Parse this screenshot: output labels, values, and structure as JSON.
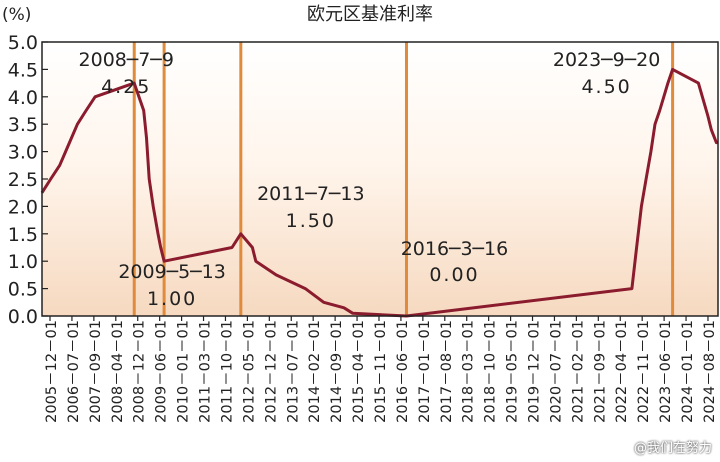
{
  "chart_data": {
    "type": "line",
    "title": "欧元区基准利率",
    "ylabel": "(%)",
    "ylim": [
      0,
      5.0
    ],
    "yticks": [
      "5.0",
      "4.5",
      "4.0",
      "3.5",
      "3.0",
      "2.5",
      "2.0",
      "1.5",
      "1.0",
      "0.5",
      "0.0"
    ],
    "x_ticks": [
      "2005-12-01",
      "2006-07-01",
      "2007-09-01",
      "2008-04-01",
      "2008-12-01",
      "2009-06-01",
      "2010-01-01",
      "2011-03-01",
      "2011-10-01",
      "2012-05-01",
      "2012-12-01",
      "2013-07-01",
      "2014-02-01",
      "2014-09-01",
      "2015-04-01",
      "2015-11-01",
      "2016-06-01",
      "2017-01-01",
      "2017-08-01",
      "2018-03-01",
      "2018-10-01",
      "2019-05-01",
      "2019-12-01",
      "2020-07-01",
      "2021-02-01",
      "2021-09-01",
      "2022-04-01",
      "2022-11-01",
      "2023-06-01",
      "2024-01-01",
      "2024-08-01"
    ],
    "tick_labels": [
      "2005－12－01",
      "2006－07－01",
      "2007－09－01",
      "2008－04－01",
      "2008－12－01",
      "2009－06－01",
      "2010－01－01",
      "2011－03－01",
      "2011－10－01",
      "2012－05－01",
      "2012－12－01",
      "2013－07－01",
      "2014－02－01",
      "2014－09－01",
      "2015－04－01",
      "2015－11－01",
      "2016－06－01",
      "2017－01－01",
      "2017－08－01",
      "2018－03－01",
      "2018－10－01",
      "2019－05－01",
      "2019－12－01",
      "2020－07－01",
      "2021－02－01",
      "2021－09－01",
      "2022－04－01",
      "2022－11－01",
      "2023－06－01",
      "2024－01－01",
      "2024－08－01"
    ],
    "series": [
      {
        "values": [
          [
            "2005-12-01",
            2.25
          ],
          [
            "2006-03-01",
            2.5
          ],
          [
            "2006-06-01",
            2.75
          ],
          [
            "2006-08-01",
            3.0
          ],
          [
            "2006-10-01",
            3.25
          ],
          [
            "2006-12-01",
            3.5
          ],
          [
            "2007-03-01",
            3.75
          ],
          [
            "2007-06-01",
            4.0
          ],
          [
            "2008-07-09",
            4.25
          ],
          [
            "2008-10-15",
            3.75
          ],
          [
            "2008-11-12",
            3.25
          ],
          [
            "2008-12-10",
            2.5
          ],
          [
            "2009-01-21",
            2.0
          ],
          [
            "2009-03-11",
            1.5
          ],
          [
            "2009-04-08",
            1.25
          ],
          [
            "2009-05-13",
            1.0
          ],
          [
            "2011-04-13",
            1.25
          ],
          [
            "2011-07-13",
            1.5
          ],
          [
            "2011-11-09",
            1.25
          ],
          [
            "2011-12-14",
            1.0
          ],
          [
            "2012-07-11",
            0.75
          ],
          [
            "2013-05-08",
            0.5
          ],
          [
            "2013-11-13",
            0.25
          ],
          [
            "2014-06-11",
            0.15
          ],
          [
            "2014-09-10",
            0.05
          ],
          [
            "2016-03-16",
            0.0
          ],
          [
            "2022-07-27",
            0.5
          ],
          [
            "2022-09-14",
            1.25
          ],
          [
            "2022-11-02",
            2.0
          ],
          [
            "2022-12-21",
            2.5
          ],
          [
            "2023-02-08",
            3.0
          ],
          [
            "2023-03-22",
            3.5
          ],
          [
            "2023-05-10",
            3.75
          ],
          [
            "2023-06-21",
            4.0
          ],
          [
            "2023-08-02",
            4.25
          ],
          [
            "2023-09-20",
            4.5
          ],
          [
            "2024-06-12",
            4.25
          ],
          [
            "2024-09-18",
            3.65
          ],
          [
            "2024-10-23",
            3.4
          ],
          [
            "2024-12-18",
            3.15
          ]
        ]
      }
    ],
    "annotations": [
      {
        "date": "2008-07-09",
        "label": "2008─7─9",
        "value_label": "4.25"
      },
      {
        "date": "2009-05-13",
        "label": "2009─5─13",
        "value_label": "1.00"
      },
      {
        "date": "2011-07-13",
        "label": "2011─7─13",
        "value_label": "1.50"
      },
      {
        "date": "2016-03-16",
        "label": "2016─3─16",
        "value_label": "0.00"
      },
      {
        "date": "2023-09-20",
        "label": "2023─9─20",
        "value_label": "4.50"
      }
    ],
    "grid": false,
    "colors": {
      "line": "#8b1c2e",
      "marker_line": "#e08a3c",
      "fill_top": "#fbe6d2",
      "axis": "#222222"
    }
  },
  "watermark": "@我们在努力"
}
